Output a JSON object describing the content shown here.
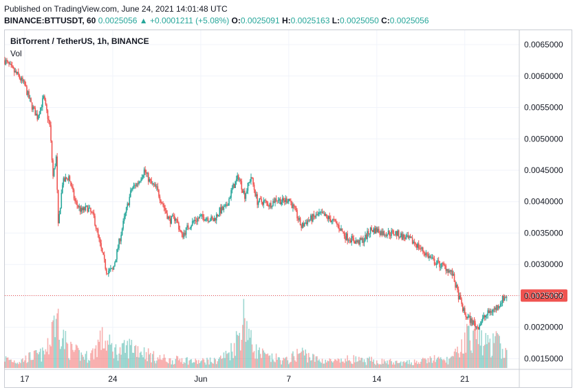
{
  "header": {
    "published": "Published on TradingView.com, June 24, 2021 14:01:48 UTC",
    "symbol": "BINANCE:BTTUSDT, 60",
    "last": "0.0025056",
    "change": "+0.0001211 (+5.08%)",
    "o_label": "O:",
    "o_value": "0.0025091",
    "h_label": "H:",
    "h_value": "0.0025163",
    "l_label": "L:",
    "l_value": "0.0025050",
    "c_label": "C:",
    "c_value": "0.0025056",
    "up_arrow": "▲"
  },
  "pane": {
    "title": "BitTorrent / TetherUS, 1h, BINANCE",
    "volume_label": "Vol"
  },
  "colors": {
    "up": "#26a69a",
    "down": "#ef5350",
    "price_tag": "#ef5350",
    "grid": "#f0f3fa"
  },
  "chart_data": {
    "type": "line",
    "title": "BitTorrent / TetherUS, 1h, BINANCE",
    "y_axis_ticks": [
      "0.0065000",
      "0.0060000",
      "0.0055000",
      "0.0050000",
      "0.0045000",
      "0.0040000",
      "0.0035000",
      "0.0030000",
      "0.0025000",
      "0.0020000",
      "0.0015000"
    ],
    "y_tick_values": [
      0.0065,
      0.006,
      0.0055,
      0.005,
      0.0045,
      0.004,
      0.0035,
      0.003,
      0.0025,
      0.002,
      0.0015
    ],
    "ylim": [
      0.00133,
      0.00673
    ],
    "x_tick_labels": [
      "17",
      "24",
      "Jun",
      "7",
      "14",
      "21"
    ],
    "x_tick_dates": [
      "2021-05-17",
      "2021-05-24",
      "2021-05-31",
      "2021-06-07",
      "2021-06-14",
      "2021-06-21"
    ],
    "xlim": [
      "2021-05-15T10:00",
      "2021-06-25T08:00"
    ],
    "last_price": 0.0025056,
    "last_price_label": "0.0025056",
    "series": [
      {
        "x": [
          "2021-05-15T10:00",
          "2021-05-16T00:00",
          "2021-05-16T12:00",
          "2021-05-17T00:00",
          "2021-05-17T12:00",
          "2021-05-18T00:00",
          "2021-05-18T12:00",
          "2021-05-19T00:00",
          "2021-05-19T06:00",
          "2021-05-19T12:00",
          "2021-05-19T16:00",
          "2021-05-20T00:00",
          "2021-05-20T12:00",
          "2021-05-21T00:00",
          "2021-05-21T12:00",
          "2021-05-22T00:00",
          "2021-05-22T12:00",
          "2021-05-23T00:00",
          "2021-05-23T12:00",
          "2021-05-24T00:00",
          "2021-05-24T12:00",
          "2021-05-25T00:00",
          "2021-05-25T12:00",
          "2021-05-26T00:00",
          "2021-05-26T12:00",
          "2021-05-27T00:00",
          "2021-05-27T12:00",
          "2021-05-28T00:00",
          "2021-05-28T12:00",
          "2021-05-29T00:00",
          "2021-05-29T12:00",
          "2021-05-30T00:00",
          "2021-05-30T12:00",
          "2021-05-31T00:00",
          "2021-05-31T12:00",
          "2021-06-01T00:00",
          "2021-06-01T12:00",
          "2021-06-02T00:00",
          "2021-06-02T12:00",
          "2021-06-03T00:00",
          "2021-06-03T12:00",
          "2021-06-04T00:00",
          "2021-06-04T12:00",
          "2021-06-05T00:00",
          "2021-06-05T12:00",
          "2021-06-06T00:00",
          "2021-06-06T12:00",
          "2021-06-07T00:00",
          "2021-06-07T12:00",
          "2021-06-08T00:00",
          "2021-06-08T12:00",
          "2021-06-09T00:00",
          "2021-06-09T12:00",
          "2021-06-10T00:00",
          "2021-06-10T12:00",
          "2021-06-11T00:00",
          "2021-06-11T12:00",
          "2021-06-12T00:00",
          "2021-06-12T12:00",
          "2021-06-13T00:00",
          "2021-06-13T12:00",
          "2021-06-14T00:00",
          "2021-06-14T12:00",
          "2021-06-15T00:00",
          "2021-06-15T12:00",
          "2021-06-16T00:00",
          "2021-06-16T12:00",
          "2021-06-17T00:00",
          "2021-06-17T12:00",
          "2021-06-18T00:00",
          "2021-06-18T12:00",
          "2021-06-19T00:00",
          "2021-06-19T12:00",
          "2021-06-20T00:00",
          "2021-06-20T12:00",
          "2021-06-21T00:00",
          "2021-06-21T12:00",
          "2021-06-22T00:00",
          "2021-06-22T12:00",
          "2021-06-23T00:00",
          "2021-06-23T12:00",
          "2021-06-24T00:00",
          "2021-06-24T08:00"
        ],
        "price": [
          0.00625,
          0.0061,
          0.006,
          0.00585,
          0.00555,
          0.00535,
          0.00565,
          0.0052,
          0.0044,
          0.0047,
          0.0036,
          0.0043,
          0.0044,
          0.004,
          0.00385,
          0.0039,
          0.00375,
          0.0033,
          0.0029,
          0.0029,
          0.00335,
          0.0038,
          0.0042,
          0.0043,
          0.0045,
          0.0043,
          0.0042,
          0.00395,
          0.0037,
          0.00375,
          0.00345,
          0.0036,
          0.0037,
          0.00375,
          0.00375,
          0.0037,
          0.00385,
          0.0039,
          0.0042,
          0.0044,
          0.0041,
          0.0044,
          0.004,
          0.004,
          0.00395,
          0.00405,
          0.004,
          0.00405,
          0.00385,
          0.0036,
          0.0037,
          0.00375,
          0.0038,
          0.00375,
          0.0037,
          0.0036,
          0.00345,
          0.0034,
          0.00335,
          0.0034,
          0.00355,
          0.00355,
          0.0035,
          0.0035,
          0.0035,
          0.00345,
          0.0034,
          0.00335,
          0.00325,
          0.00315,
          0.00305,
          0.003,
          0.00295,
          0.00285,
          0.0025,
          0.0022,
          0.0021,
          0.002,
          0.00215,
          0.00225,
          0.0023,
          0.00245,
          0.0025
        ]
      }
    ],
    "volume_profile": [
      0.15,
      0.12,
      0.1,
      0.14,
      0.18,
      0.2,
      0.22,
      0.35,
      0.9,
      0.6,
      0.85,
      0.5,
      0.3,
      0.25,
      0.2,
      0.18,
      0.25,
      0.45,
      0.4,
      0.3,
      0.25,
      0.3,
      0.35,
      0.3,
      0.25,
      0.2,
      0.15,
      0.15,
      0.12,
      0.12,
      0.15,
      0.12,
      0.1,
      0.1,
      0.12,
      0.1,
      0.15,
      0.2,
      0.3,
      0.5,
      0.85,
      0.4,
      0.25,
      0.2,
      0.15,
      0.15,
      0.12,
      0.12,
      0.2,
      0.25,
      0.2,
      0.15,
      0.12,
      0.12,
      0.1,
      0.1,
      0.12,
      0.15,
      0.12,
      0.1,
      0.12,
      0.1,
      0.1,
      0.1,
      0.08,
      0.08,
      0.08,
      0.1,
      0.1,
      0.12,
      0.15,
      0.12,
      0.12,
      0.15,
      0.25,
      0.45,
      0.55,
      0.5,
      0.4,
      0.35,
      0.4,
      0.3,
      0.2
    ]
  }
}
